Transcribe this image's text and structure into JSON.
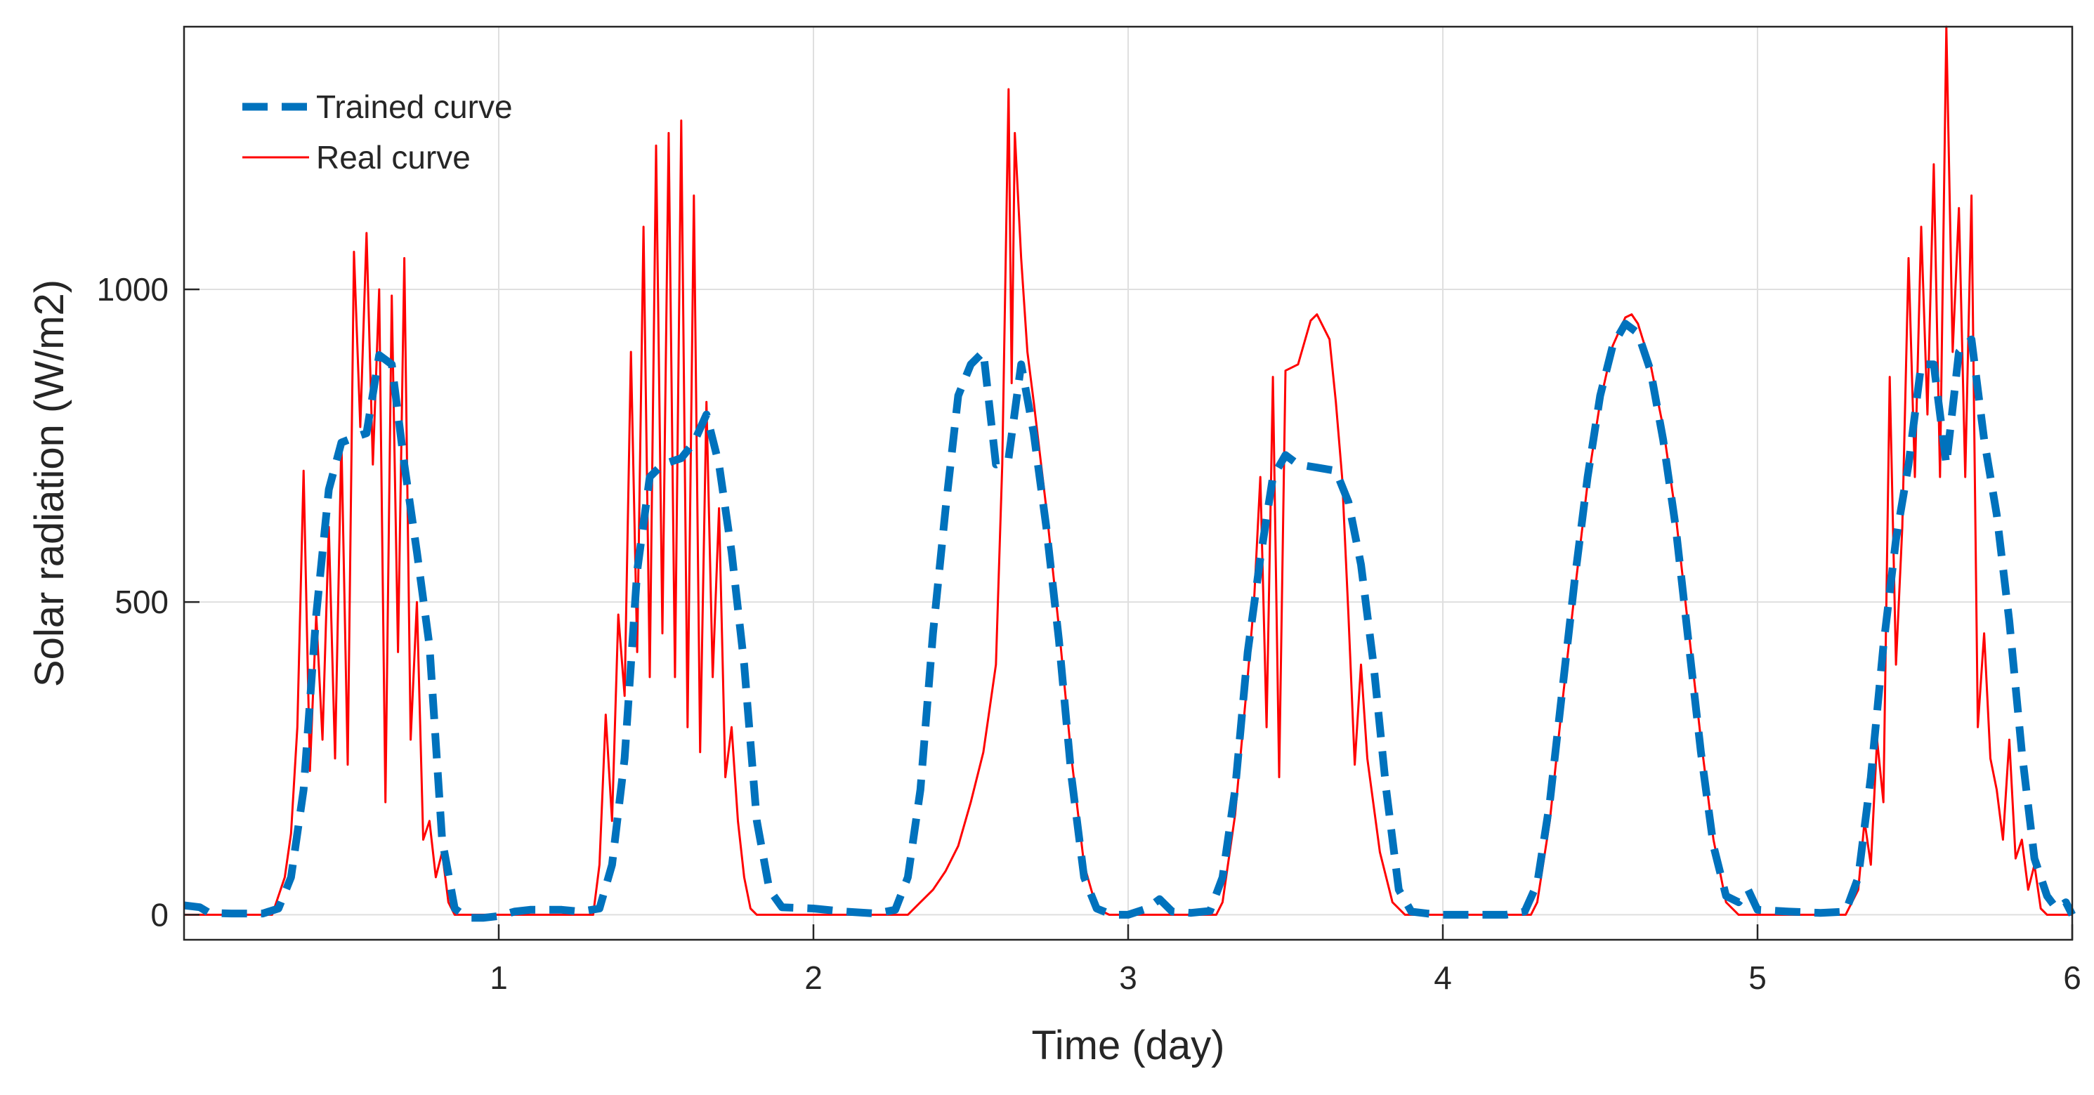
{
  "chart_data": {
    "type": "line",
    "title": "",
    "xlabel": "Time (day)",
    "ylabel": "Solar radiation (W/m2)",
    "xlim": [
      0,
      6
    ],
    "ylim": [
      -40,
      1420
    ],
    "xticks": [
      1,
      2,
      3,
      4,
      5,
      6
    ],
    "xtick_labels": [
      "1",
      "2",
      "3",
      "4",
      "5",
      "6"
    ],
    "yticks": [
      0,
      500,
      1000
    ],
    "ytick_labels": [
      "0",
      "500",
      "1000"
    ],
    "grid": true,
    "legend_position": "top-left",
    "series": [
      {
        "name": "Trained curve",
        "style": "dashed",
        "color": "#0072BD",
        "points": [
          [
            0.0,
            15
          ],
          [
            0.05,
            12
          ],
          [
            0.08,
            3
          ],
          [
            0.15,
            2
          ],
          [
            0.25,
            2
          ],
          [
            0.3,
            10
          ],
          [
            0.34,
            60
          ],
          [
            0.38,
            200
          ],
          [
            0.42,
            480
          ],
          [
            0.46,
            680
          ],
          [
            0.5,
            755
          ],
          [
            0.55,
            765
          ],
          [
            0.58,
            770
          ],
          [
            0.62,
            895
          ],
          [
            0.66,
            880
          ],
          [
            0.7,
            720
          ],
          [
            0.74,
            580
          ],
          [
            0.78,
            430
          ],
          [
            0.82,
            120
          ],
          [
            0.86,
            10
          ],
          [
            0.9,
            -5
          ],
          [
            0.95,
            -5
          ],
          [
            1.0,
            -2
          ],
          [
            1.05,
            5
          ],
          [
            1.1,
            8
          ],
          [
            1.2,
            8
          ],
          [
            1.26,
            5
          ],
          [
            1.32,
            10
          ],
          [
            1.36,
            80
          ],
          [
            1.4,
            250
          ],
          [
            1.44,
            550
          ],
          [
            1.48,
            700
          ],
          [
            1.52,
            720
          ],
          [
            1.58,
            730
          ],
          [
            1.62,
            755
          ],
          [
            1.66,
            800
          ],
          [
            1.7,
            720
          ],
          [
            1.74,
            580
          ],
          [
            1.78,
            400
          ],
          [
            1.82,
            150
          ],
          [
            1.86,
            40
          ],
          [
            1.9,
            12
          ],
          [
            2.0,
            10
          ],
          [
            2.1,
            5
          ],
          [
            2.2,
            2
          ],
          [
            2.26,
            8
          ],
          [
            2.3,
            60
          ],
          [
            2.34,
            200
          ],
          [
            2.38,
            450
          ],
          [
            2.42,
            650
          ],
          [
            2.46,
            830
          ],
          [
            2.5,
            880
          ],
          [
            2.54,
            900
          ],
          [
            2.58,
            720
          ],
          [
            2.62,
            730
          ],
          [
            2.66,
            880
          ],
          [
            2.7,
            770
          ],
          [
            2.74,
            620
          ],
          [
            2.78,
            440
          ],
          [
            2.82,
            220
          ],
          [
            2.86,
            60
          ],
          [
            2.9,
            10
          ],
          [
            2.95,
            0
          ],
          [
            3.0,
            0
          ],
          [
            3.06,
            10
          ],
          [
            3.1,
            25
          ],
          [
            3.14,
            5
          ],
          [
            3.2,
            3
          ],
          [
            3.26,
            6
          ],
          [
            3.3,
            60
          ],
          [
            3.34,
            200
          ],
          [
            3.38,
            420
          ],
          [
            3.42,
            570
          ],
          [
            3.46,
            700
          ],
          [
            3.5,
            735
          ],
          [
            3.54,
            720
          ],
          [
            3.6,
            715
          ],
          [
            3.66,
            710
          ],
          [
            3.7,
            660
          ],
          [
            3.74,
            560
          ],
          [
            3.78,
            400
          ],
          [
            3.82,
            200
          ],
          [
            3.86,
            40
          ],
          [
            3.9,
            5
          ],
          [
            3.95,
            2
          ],
          [
            4.0,
            0
          ],
          [
            4.1,
            0
          ],
          [
            4.2,
            0
          ],
          [
            4.26,
            5
          ],
          [
            4.3,
            50
          ],
          [
            4.34,
            180
          ],
          [
            4.38,
            360
          ],
          [
            4.42,
            540
          ],
          [
            4.46,
            700
          ],
          [
            4.5,
            830
          ],
          [
            4.54,
            910
          ],
          [
            4.58,
            945
          ],
          [
            4.62,
            930
          ],
          [
            4.66,
            870
          ],
          [
            4.7,
            760
          ],
          [
            4.74,
            620
          ],
          [
            4.78,
            440
          ],
          [
            4.82,
            260
          ],
          [
            4.86,
            110
          ],
          [
            4.9,
            30
          ],
          [
            4.94,
            20
          ],
          [
            4.97,
            40
          ],
          [
            5.0,
            8
          ],
          [
            5.1,
            5
          ],
          [
            5.2,
            3
          ],
          [
            5.28,
            5
          ],
          [
            5.32,
            60
          ],
          [
            5.36,
            220
          ],
          [
            5.4,
            430
          ],
          [
            5.44,
            600
          ],
          [
            5.48,
            720
          ],
          [
            5.52,
            880
          ],
          [
            5.56,
            880
          ],
          [
            5.6,
            720
          ],
          [
            5.64,
            900
          ],
          [
            5.68,
            920
          ],
          [
            5.72,
            760
          ],
          [
            5.76,
            640
          ],
          [
            5.8,
            470
          ],
          [
            5.84,
            260
          ],
          [
            5.88,
            90
          ],
          [
            5.92,
            30
          ],
          [
            5.95,
            10
          ],
          [
            5.98,
            20
          ],
          [
            6.0,
            0
          ]
        ]
      },
      {
        "name": "Real curve",
        "style": "solid",
        "color": "#FF0000",
        "points": [
          [
            0.0,
            0
          ],
          [
            0.28,
            0
          ],
          [
            0.32,
            60
          ],
          [
            0.34,
            130
          ],
          [
            0.36,
            300
          ],
          [
            0.38,
            710
          ],
          [
            0.4,
            230
          ],
          [
            0.42,
            480
          ],
          [
            0.44,
            280
          ],
          [
            0.46,
            620
          ],
          [
            0.48,
            250
          ],
          [
            0.5,
            760
          ],
          [
            0.52,
            240
          ],
          [
            0.54,
            1060
          ],
          [
            0.56,
            780
          ],
          [
            0.58,
            1090
          ],
          [
            0.6,
            720
          ],
          [
            0.62,
            1000
          ],
          [
            0.64,
            180
          ],
          [
            0.66,
            990
          ],
          [
            0.68,
            420
          ],
          [
            0.7,
            1050
          ],
          [
            0.72,
            280
          ],
          [
            0.74,
            500
          ],
          [
            0.76,
            120
          ],
          [
            0.78,
            150
          ],
          [
            0.8,
            60
          ],
          [
            0.82,
            100
          ],
          [
            0.84,
            20
          ],
          [
            0.86,
            0
          ],
          [
            1.3,
            0
          ],
          [
            1.32,
            80
          ],
          [
            1.34,
            320
          ],
          [
            1.36,
            150
          ],
          [
            1.38,
            480
          ],
          [
            1.4,
            350
          ],
          [
            1.42,
            900
          ],
          [
            1.44,
            420
          ],
          [
            1.46,
            1100
          ],
          [
            1.48,
            380
          ],
          [
            1.5,
            1230
          ],
          [
            1.52,
            450
          ],
          [
            1.54,
            1250
          ],
          [
            1.56,
            380
          ],
          [
            1.58,
            1270
          ],
          [
            1.6,
            300
          ],
          [
            1.62,
            1150
          ],
          [
            1.64,
            260
          ],
          [
            1.66,
            820
          ],
          [
            1.68,
            380
          ],
          [
            1.7,
            650
          ],
          [
            1.72,
            220
          ],
          [
            1.74,
            300
          ],
          [
            1.76,
            150
          ],
          [
            1.78,
            60
          ],
          [
            1.8,
            10
          ],
          [
            1.82,
            0
          ],
          [
            2.3,
            0
          ],
          [
            2.34,
            20
          ],
          [
            2.38,
            40
          ],
          [
            2.42,
            70
          ],
          [
            2.46,
            110
          ],
          [
            2.5,
            180
          ],
          [
            2.54,
            260
          ],
          [
            2.56,
            330
          ],
          [
            2.58,
            400
          ],
          [
            2.6,
            720
          ],
          [
            2.62,
            1320
          ],
          [
            2.63,
            850
          ],
          [
            2.64,
            1250
          ],
          [
            2.66,
            1050
          ],
          [
            2.68,
            900
          ],
          [
            2.7,
            820
          ],
          [
            2.74,
            650
          ],
          [
            2.78,
            460
          ],
          [
            2.82,
            250
          ],
          [
            2.86,
            80
          ],
          [
            2.9,
            10
          ],
          [
            2.94,
            0
          ],
          [
            3.28,
            0
          ],
          [
            3.3,
            20
          ],
          [
            3.34,
            160
          ],
          [
            3.38,
            380
          ],
          [
            3.4,
            500
          ],
          [
            3.42,
            700
          ],
          [
            3.44,
            300
          ],
          [
            3.46,
            860
          ],
          [
            3.48,
            220
          ],
          [
            3.5,
            870
          ],
          [
            3.54,
            880
          ],
          [
            3.58,
            950
          ],
          [
            3.6,
            960
          ],
          [
            3.64,
            920
          ],
          [
            3.66,
            820
          ],
          [
            3.68,
            700
          ],
          [
            3.7,
            480
          ],
          [
            3.72,
            240
          ],
          [
            3.74,
            400
          ],
          [
            3.76,
            250
          ],
          [
            3.8,
            100
          ],
          [
            3.84,
            20
          ],
          [
            3.88,
            0
          ],
          [
            4.28,
            0
          ],
          [
            4.3,
            20
          ],
          [
            4.34,
            150
          ],
          [
            4.38,
            340
          ],
          [
            4.42,
            520
          ],
          [
            4.46,
            690
          ],
          [
            4.5,
            820
          ],
          [
            4.54,
            910
          ],
          [
            4.58,
            955
          ],
          [
            4.6,
            960
          ],
          [
            4.62,
            945
          ],
          [
            4.66,
            880
          ],
          [
            4.7,
            780
          ],
          [
            4.74,
            640
          ],
          [
            4.78,
            460
          ],
          [
            4.82,
            280
          ],
          [
            4.86,
            120
          ],
          [
            4.9,
            20
          ],
          [
            4.94,
            0
          ],
          [
            5.28,
            0
          ],
          [
            5.32,
            40
          ],
          [
            5.34,
            150
          ],
          [
            5.36,
            80
          ],
          [
            5.38,
            280
          ],
          [
            5.4,
            180
          ],
          [
            5.42,
            860
          ],
          [
            5.44,
            400
          ],
          [
            5.46,
            620
          ],
          [
            5.48,
            1050
          ],
          [
            5.5,
            700
          ],
          [
            5.52,
            1100
          ],
          [
            5.54,
            800
          ],
          [
            5.56,
            1200
          ],
          [
            5.58,
            700
          ],
          [
            5.6,
            1420
          ],
          [
            5.62,
            900
          ],
          [
            5.64,
            1130
          ],
          [
            5.66,
            700
          ],
          [
            5.68,
            1150
          ],
          [
            5.7,
            300
          ],
          [
            5.72,
            450
          ],
          [
            5.74,
            250
          ],
          [
            5.76,
            200
          ],
          [
            5.78,
            120
          ],
          [
            5.8,
            280
          ],
          [
            5.82,
            90
          ],
          [
            5.84,
            120
          ],
          [
            5.86,
            40
          ],
          [
            5.88,
            80
          ],
          [
            5.9,
            10
          ],
          [
            5.92,
            0
          ],
          [
            6.0,
            0
          ]
        ]
      }
    ]
  }
}
